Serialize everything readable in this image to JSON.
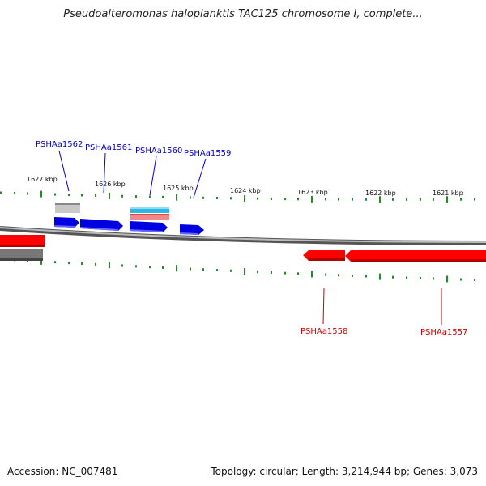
{
  "title": "Pseudoalteromonas haloplanktis TAC125 chromosome I, complete...",
  "footer": {
    "accession": "Accession: NC_007481",
    "stats": "Topology: circular; Length: 3,214,944 bp; Genes: 3,073"
  },
  "colors": {
    "forward_gene": "#0000e0",
    "reverse_gene": "#ff0000",
    "forward_label": "#0000cc",
    "reverse_label": "#cc0000",
    "tick": "#228b22",
    "backbone": "#888888",
    "rna": "#2bb7e8",
    "pink": "#f08a8a",
    "grey_feature": "#aaaaaa"
  },
  "ticks": [
    {
      "label": "1627 kbp"
    },
    {
      "label": "1626 kbp"
    },
    {
      "label": "1625 kbp"
    },
    {
      "label": "1624 kbp"
    },
    {
      "label": "1623 kbp"
    },
    {
      "label": "1622 kbp"
    },
    {
      "label": "1621 kbp"
    }
  ],
  "genes": [
    {
      "label": "PSHAa1562",
      "strand": "forward"
    },
    {
      "label": "PSHAa1561",
      "strand": "forward"
    },
    {
      "label": "PSHAa1560",
      "strand": "forward"
    },
    {
      "label": "PSHAa1559",
      "strand": "forward"
    },
    {
      "label": "PSHAa1558",
      "strand": "reverse"
    },
    {
      "label": "PSHAa1557",
      "strand": "reverse"
    }
  ]
}
